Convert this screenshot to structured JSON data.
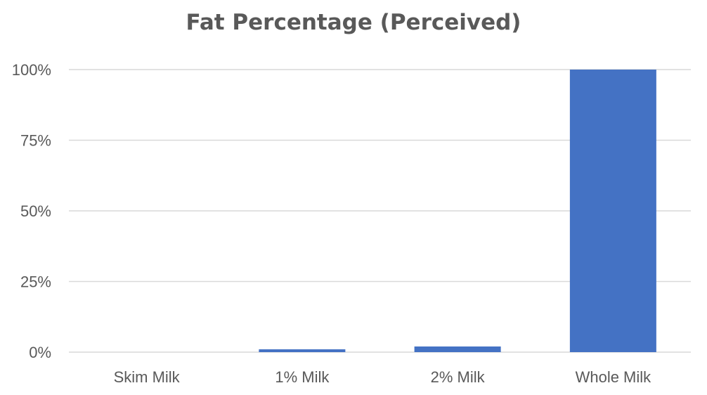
{
  "chart_data": {
    "type": "bar",
    "title": "Fat Percentage (Perceived)",
    "xlabel": "",
    "ylabel": "",
    "categories": [
      "Skim Milk",
      "1% Milk",
      "2% Milk",
      "Whole Milk"
    ],
    "values": [
      0,
      1,
      2,
      100
    ],
    "ylim": [
      0,
      100
    ],
    "yticks": [
      0,
      25,
      50,
      75,
      100
    ],
    "ytick_labels": [
      "0%",
      "25%",
      "50%",
      "75%",
      "100%"
    ],
    "grid": true,
    "legend": "none",
    "bar_color": "#4472C4",
    "grid_color": "#D9D9D9",
    "text_color": "#595959"
  }
}
